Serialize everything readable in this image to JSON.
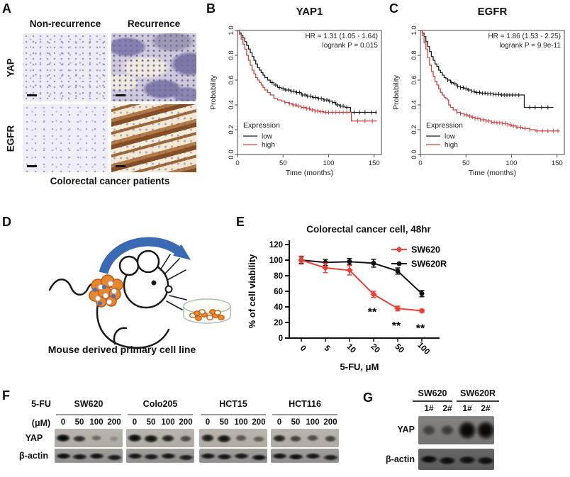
{
  "panels": {
    "A": {
      "label": "A",
      "col_headers": [
        "Non-recurrence",
        "Recurrence"
      ],
      "row_labels": [
        "YAP",
        "EGFR"
      ],
      "caption": "Colorectal cancer patients"
    },
    "B": {
      "label": "B"
    },
    "C": {
      "label": "C"
    },
    "D": {
      "label": "D",
      "caption": "Mouse derived primary cell line"
    },
    "E": {
      "label": "E"
    },
    "F": {
      "label": "F",
      "drug_label": "5-FU",
      "unit_label": "(μM)",
      "doses": [
        "0",
        "50",
        "100",
        "200"
      ],
      "row_labels": [
        "YAP",
        "β-actin"
      ],
      "groups": [
        {
          "name": "SW620",
          "yap": [
            1.0,
            0.72,
            0.32,
            0.07
          ],
          "actin": [
            0.95,
            0.9,
            0.92,
            0.88
          ]
        },
        {
          "name": "Colo205",
          "yap": [
            0.95,
            0.92,
            0.8,
            0.55
          ],
          "actin": [
            0.9,
            0.88,
            0.9,
            0.85
          ]
        },
        {
          "name": "HCT15",
          "yap": [
            0.85,
            0.92,
            0.45,
            0.4
          ],
          "actin": [
            0.9,
            0.92,
            0.88,
            0.95
          ]
        },
        {
          "name": "HCT116",
          "yap": [
            0.8,
            0.6,
            0.52,
            0.58
          ],
          "actin": [
            0.92,
            0.95,
            0.9,
            0.85
          ]
        }
      ]
    },
    "G": {
      "label": "G",
      "row_labels": [
        "YAP",
        "β-actin"
      ],
      "groups": [
        {
          "name": "SW620",
          "lanes": [
            "1#",
            "2#"
          ]
        },
        {
          "name": "SW620R",
          "lanes": [
            "1#",
            "2#"
          ]
        }
      ],
      "yap": [
        0.3,
        0.36,
        1.0,
        0.97
      ],
      "actin": [
        0.95,
        0.92,
        0.9,
        0.93
      ]
    }
  },
  "chart_data": [
    {
      "type": "line",
      "subtype": "kaplan-meier",
      "title": "YAP1",
      "stats": [
        "HR = 1.31 (1.05 - 1.64)",
        "logrank P = 0.015"
      ],
      "xlabel": "Time (months)",
      "ylabel": "Probability",
      "legend_title": "Expression",
      "xlim": [
        0,
        158
      ],
      "xticks": [
        0,
        50,
        100,
        150
      ],
      "ylim": [
        0,
        1
      ],
      "yticks": [
        0.0,
        0.2,
        0.4,
        0.6,
        0.8,
        1.0
      ],
      "series": [
        {
          "name": "low",
          "color": "#1a1a1a",
          "steps": [
            [
              0,
              1.0
            ],
            [
              2,
              0.98
            ],
            [
              4,
              0.96
            ],
            [
              6,
              0.94
            ],
            [
              8,
              0.91
            ],
            [
              10,
              0.88
            ],
            [
              12,
              0.85
            ],
            [
              14,
              0.82
            ],
            [
              16,
              0.79
            ],
            [
              18,
              0.76
            ],
            [
              20,
              0.73
            ],
            [
              22,
              0.7
            ],
            [
              24,
              0.68
            ],
            [
              26,
              0.66
            ],
            [
              28,
              0.64
            ],
            [
              30,
              0.62
            ],
            [
              33,
              0.6
            ],
            [
              36,
              0.58
            ],
            [
              40,
              0.56
            ],
            [
              44,
              0.54
            ],
            [
              48,
              0.53
            ],
            [
              52,
              0.52
            ],
            [
              58,
              0.51
            ],
            [
              64,
              0.5
            ],
            [
              70,
              0.48
            ],
            [
              76,
              0.47
            ],
            [
              82,
              0.46
            ],
            [
              88,
              0.45
            ],
            [
              94,
              0.44
            ],
            [
              100,
              0.43
            ],
            [
              104,
              0.42
            ],
            [
              108,
              0.4
            ],
            [
              112,
              0.39
            ],
            [
              118,
              0.38
            ],
            [
              124,
              0.34
            ],
            [
              153,
              0.34
            ]
          ],
          "censors": [
            38,
            42,
            46,
            50,
            53,
            56,
            59,
            62,
            65,
            68,
            71,
            74,
            77,
            80,
            83,
            86,
            89,
            92,
            95,
            98,
            101,
            104,
            107,
            110,
            113,
            116,
            120,
            128,
            134,
            140,
            147,
            152
          ]
        },
        {
          "name": "high",
          "color": "#d4403c",
          "steps": [
            [
              0,
              1.0
            ],
            [
              2,
              0.97
            ],
            [
              4,
              0.93
            ],
            [
              6,
              0.89
            ],
            [
              8,
              0.85
            ],
            [
              10,
              0.8
            ],
            [
              12,
              0.76
            ],
            [
              14,
              0.72
            ],
            [
              16,
              0.68
            ],
            [
              18,
              0.65
            ],
            [
              20,
              0.62
            ],
            [
              22,
              0.6
            ],
            [
              24,
              0.58
            ],
            [
              26,
              0.56
            ],
            [
              28,
              0.54
            ],
            [
              30,
              0.52
            ],
            [
              33,
              0.5
            ],
            [
              36,
              0.48
            ],
            [
              40,
              0.45
            ],
            [
              44,
              0.44
            ],
            [
              48,
              0.43
            ],
            [
              52,
              0.42
            ],
            [
              56,
              0.41
            ],
            [
              60,
              0.4
            ],
            [
              65,
              0.39
            ],
            [
              70,
              0.38
            ],
            [
              75,
              0.37
            ],
            [
              80,
              0.36
            ],
            [
              85,
              0.35
            ],
            [
              90,
              0.345
            ],
            [
              95,
              0.34
            ],
            [
              120,
              0.34
            ],
            [
              125,
              0.27
            ],
            [
              153,
              0.27
            ]
          ],
          "censors": [
            52,
            57,
            61,
            64,
            67,
            70,
            73,
            76,
            79,
            82,
            85,
            88,
            91,
            94,
            97,
            100,
            104,
            108,
            112,
            116,
            120,
            132,
            140,
            148
          ]
        }
      ]
    },
    {
      "type": "line",
      "subtype": "kaplan-meier",
      "title": "EGFR",
      "stats": [
        "HR = 1.86 (1.53 - 2.25)",
        "logrank P = 9.9e-11"
      ],
      "xlabel": "Time (months)",
      "ylabel": "Probability",
      "legend_title": "Expression",
      "xlim": [
        0,
        158
      ],
      "xticks": [
        0,
        50,
        100,
        150
      ],
      "ylim": [
        0,
        1
      ],
      "yticks": [
        0.0,
        0.2,
        0.4,
        0.6,
        0.8,
        1.0
      ],
      "series": [
        {
          "name": "low",
          "color": "#1a1a1a",
          "steps": [
            [
              0,
              1.0
            ],
            [
              2,
              0.98
            ],
            [
              4,
              0.95
            ],
            [
              6,
              0.91
            ],
            [
              8,
              0.87
            ],
            [
              10,
              0.83
            ],
            [
              12,
              0.79
            ],
            [
              14,
              0.76
            ],
            [
              16,
              0.73
            ],
            [
              18,
              0.71
            ],
            [
              20,
              0.68
            ],
            [
              22,
              0.66
            ],
            [
              24,
              0.64
            ],
            [
              26,
              0.62
            ],
            [
              28,
              0.61
            ],
            [
              30,
              0.6
            ],
            [
              33,
              0.58
            ],
            [
              36,
              0.57
            ],
            [
              40,
              0.55
            ],
            [
              44,
              0.54
            ],
            [
              48,
              0.53
            ],
            [
              52,
              0.52
            ],
            [
              56,
              0.51
            ],
            [
              60,
              0.5
            ],
            [
              66,
              0.495
            ],
            [
              72,
              0.49
            ],
            [
              80,
              0.485
            ],
            [
              88,
              0.48
            ],
            [
              104,
              0.48
            ],
            [
              112,
              0.48
            ],
            [
              114,
              0.38
            ],
            [
              146,
              0.38
            ]
          ],
          "censors": [
            30,
            34,
            38,
            41,
            44,
            47,
            50,
            53,
            56,
            59,
            62,
            65,
            68,
            71,
            74,
            77,
            80,
            83,
            86,
            89,
            92,
            95,
            98,
            101,
            104,
            108,
            120,
            126,
            133,
            140
          ]
        },
        {
          "name": "high",
          "color": "#d4403c",
          "steps": [
            [
              0,
              1.0
            ],
            [
              2,
              0.96
            ],
            [
              4,
              0.9
            ],
            [
              6,
              0.85
            ],
            [
              8,
              0.78
            ],
            [
              10,
              0.72
            ],
            [
              12,
              0.67
            ],
            [
              14,
              0.63
            ],
            [
              16,
              0.59
            ],
            [
              18,
              0.56
            ],
            [
              20,
              0.53
            ],
            [
              22,
              0.5
            ],
            [
              24,
              0.48
            ],
            [
              26,
              0.46
            ],
            [
              28,
              0.45
            ],
            [
              30,
              0.44
            ],
            [
              31,
              0.4
            ],
            [
              33,
              0.38
            ],
            [
              36,
              0.36
            ],
            [
              40,
              0.34
            ],
            [
              44,
              0.33
            ],
            [
              48,
              0.32
            ],
            [
              52,
              0.31
            ],
            [
              56,
              0.3
            ],
            [
              60,
              0.29
            ],
            [
              66,
              0.28
            ],
            [
              72,
              0.27
            ],
            [
              78,
              0.26
            ],
            [
              84,
              0.255
            ],
            [
              90,
              0.25
            ],
            [
              96,
              0.24
            ],
            [
              100,
              0.23
            ],
            [
              105,
              0.22
            ],
            [
              112,
              0.21
            ],
            [
              120,
              0.2
            ],
            [
              126,
              0.19
            ],
            [
              153,
              0.19
            ]
          ],
          "censors": [
            40,
            44,
            48,
            51,
            54,
            57,
            60,
            63,
            66,
            69,
            72,
            75,
            78,
            81,
            84,
            87,
            90,
            93,
            96,
            99,
            102,
            106,
            110,
            115,
            120,
            128,
            134,
            140,
            146,
            151
          ]
        }
      ]
    },
    {
      "type": "line",
      "subtype": "dose-response",
      "title": "Colorectal cancer cell, 48hr",
      "xlabel": "5-FU, μM",
      "ylabel": "% of cell viability",
      "categories": [
        "0",
        "5",
        "10",
        "20",
        "50",
        "100"
      ],
      "ylim": [
        0,
        120
      ],
      "yticks": [
        0,
        20,
        40,
        60,
        80,
        100,
        120
      ],
      "series": [
        {
          "name": "SW620",
          "color": "#ee3f35",
          "marker": "diamond",
          "values": [
            100,
            90,
            87,
            56,
            38,
            35
          ],
          "errors": [
            5,
            6,
            6,
            4,
            3,
            2
          ]
        },
        {
          "name": "SW620R",
          "color": "#111111",
          "marker": "circle",
          "values": [
            100,
            97,
            98,
            96,
            86,
            57
          ],
          "errors": [
            4,
            4,
            4,
            5,
            4,
            4
          ]
        }
      ],
      "significance": [
        {
          "index": 3,
          "label": "**"
        },
        {
          "index": 4,
          "label": "**"
        },
        {
          "index": 5,
          "label": "**"
        }
      ],
      "legend_position": "top-right"
    }
  ],
  "colors": {
    "km_low": "#1a1a1a",
    "km_high": "#d4403c",
    "sw620_red": "#ee3f35",
    "sw620r_black": "#111111",
    "arrow_blue": "#3a6ab3",
    "tumor_orange": "#e8862e",
    "dish_cell_orange": "#ef8a2c"
  }
}
